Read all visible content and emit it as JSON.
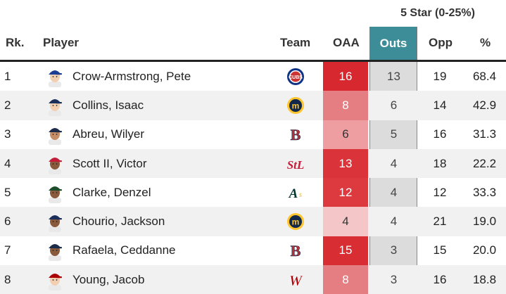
{
  "group_header": "5 Star (0-25%)",
  "columns": {
    "rank": "Rk.",
    "player": "Player",
    "team": "Team",
    "oaa": "OAA",
    "outs": "Outs",
    "opp": "Opp",
    "pct": "%"
  },
  "colors": {
    "outs_header": "#3d8d99",
    "oaa_strong": "#d7282f",
    "oaa_medium": "#e05d63",
    "oaa_light": "#ec9a9d",
    "oaa_faint": "#f5c6c7"
  },
  "rows": [
    {
      "rank": "1",
      "player": "Crow-Armstrong, Pete",
      "team_icon": "cubs-logo-icon",
      "oaa": "16",
      "outs": "13",
      "opp": "19",
      "pct": "68.4",
      "oaa_color": "#d7282f",
      "cap_color": "#1c3f94",
      "skin": "#f1cfb0",
      "logo_color": "#0e3386",
      "logo_accent": "#cc3433"
    },
    {
      "rank": "2",
      "player": "Collins, Isaac",
      "team_icon": "brewers-logo-icon",
      "oaa": "8",
      "outs": "6",
      "opp": "14",
      "pct": "42.9",
      "oaa_color": "#e57e82",
      "cap_color": "#1c2f5a",
      "skin": "#f1cfb0",
      "logo_color": "#12284b",
      "logo_accent": "#ffc52f"
    },
    {
      "rank": "3",
      "player": "Abreu, Wilyer",
      "team_icon": "red-sox-logo-icon",
      "oaa": "6",
      "outs": "5",
      "opp": "16",
      "pct": "31.3",
      "oaa_color": "#ee9ea1",
      "cap_color": "#1c2b49",
      "skin": "#c68e66",
      "logo_color": "#bd3039",
      "logo_accent": "#0c2340"
    },
    {
      "rank": "4",
      "player": "Scott II, Victor",
      "team_icon": "cardinals-logo-icon",
      "oaa": "13",
      "outs": "4",
      "opp": "18",
      "pct": "22.2",
      "oaa_color": "#da3339",
      "cap_color": "#c41e3a",
      "skin": "#8a5a3c",
      "logo_color": "#c41e3a",
      "logo_accent": "#c41e3a"
    },
    {
      "rank": "5",
      "player": "Clarke, Denzel",
      "team_icon": "athletics-logo-icon",
      "oaa": "12",
      "outs": "4",
      "opp": "12",
      "pct": "33.3",
      "oaa_color": "#dd3a40",
      "cap_color": "#1e4d2b",
      "skin": "#8a5a3c",
      "logo_color": "#003831",
      "logo_accent": "#efb21e"
    },
    {
      "rank": "6",
      "player": "Chourio, Jackson",
      "team_icon": "brewers-logo-icon",
      "oaa": "4",
      "outs": "4",
      "opp": "21",
      "pct": "19.0",
      "oaa_color": "#f5c6c7",
      "cap_color": "#1c2f5a",
      "skin": "#8a5a3c",
      "logo_color": "#12284b",
      "logo_accent": "#ffc52f"
    },
    {
      "rank": "7",
      "player": "Rafaela, Ceddanne",
      "team_icon": "red-sox-logo-icon",
      "oaa": "15",
      "outs": "3",
      "opp": "15",
      "pct": "20.0",
      "oaa_color": "#d82d33",
      "cap_color": "#1c2b49",
      "skin": "#8a5a3c",
      "logo_color": "#bd3039",
      "logo_accent": "#0c2340"
    },
    {
      "rank": "8",
      "player": "Young, Jacob",
      "team_icon": "nationals-logo-icon",
      "oaa": "8",
      "outs": "3",
      "opp": "16",
      "pct": "18.8",
      "oaa_color": "#e57e82",
      "cap_color": "#ab0003",
      "skin": "#f1cfb0",
      "logo_color": "#ab0003",
      "logo_accent": "#14225a"
    }
  ]
}
